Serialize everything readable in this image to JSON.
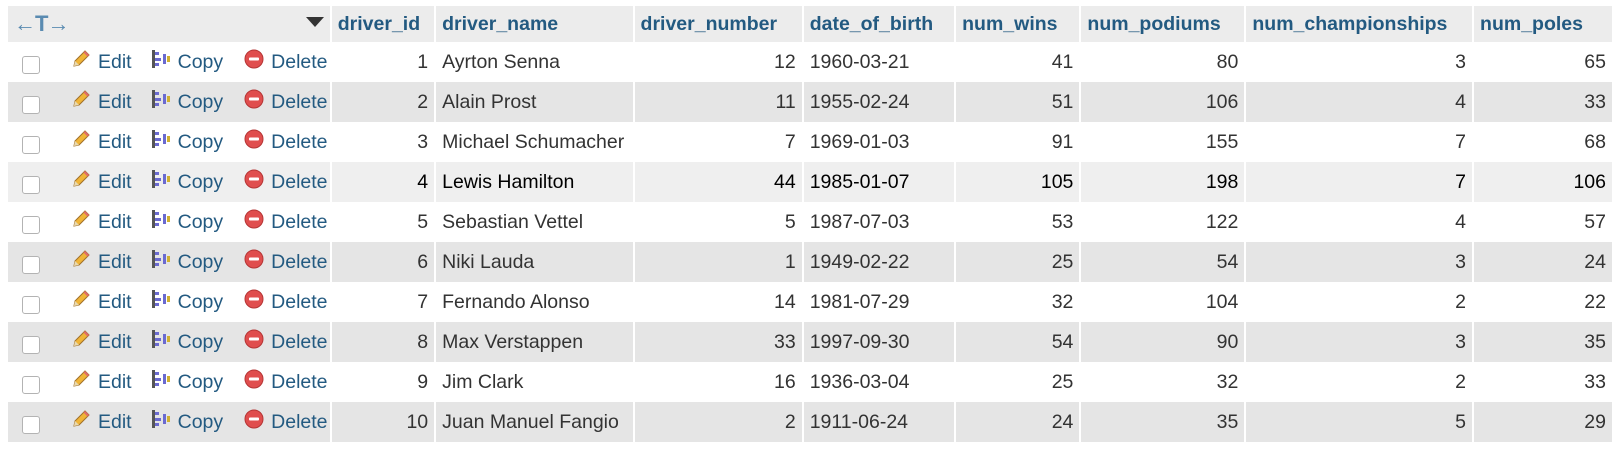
{
  "toolbar": {
    "arrows": "←T→"
  },
  "columns": [
    "driver_id",
    "driver_name",
    "driver_number",
    "date_of_birth",
    "num_wins",
    "num_podiums",
    "num_championships",
    "num_poles"
  ],
  "actions": {
    "edit": "Edit",
    "copy": "Copy",
    "delete": "Delete"
  },
  "rows": [
    {
      "driver_id": "1",
      "driver_name": "Ayrton Senna",
      "driver_number": "12",
      "date_of_birth": "1960-03-21",
      "num_wins": "41",
      "num_podiums": "80",
      "num_championships": "3",
      "num_poles": "65"
    },
    {
      "driver_id": "2",
      "driver_name": "Alain Prost",
      "driver_number": "11",
      "date_of_birth": "1955-02-24",
      "num_wins": "51",
      "num_podiums": "106",
      "num_championships": "4",
      "num_poles": "33"
    },
    {
      "driver_id": "3",
      "driver_name": "Michael Schumacher",
      "driver_number": "7",
      "date_of_birth": "1969-01-03",
      "num_wins": "91",
      "num_podiums": "155",
      "num_championships": "7",
      "num_poles": "68"
    },
    {
      "driver_id": "4",
      "driver_name": "Lewis Hamilton",
      "driver_number": "44",
      "date_of_birth": "1985-01-07",
      "num_wins": "105",
      "num_podiums": "198",
      "num_championships": "7",
      "num_poles": "106"
    },
    {
      "driver_id": "5",
      "driver_name": "Sebastian Vettel",
      "driver_number": "5",
      "date_of_birth": "1987-07-03",
      "num_wins": "53",
      "num_podiums": "122",
      "num_championships": "4",
      "num_poles": "57"
    },
    {
      "driver_id": "6",
      "driver_name": "Niki Lauda",
      "driver_number": "1",
      "date_of_birth": "1949-02-22",
      "num_wins": "25",
      "num_podiums": "54",
      "num_championships": "3",
      "num_poles": "24"
    },
    {
      "driver_id": "7",
      "driver_name": "Fernando Alonso",
      "driver_number": "14",
      "date_of_birth": "1981-07-29",
      "num_wins": "32",
      "num_podiums": "104",
      "num_championships": "2",
      "num_poles": "22"
    },
    {
      "driver_id": "8",
      "driver_name": "Max Verstappen",
      "driver_number": "33",
      "date_of_birth": "1997-09-30",
      "num_wins": "54",
      "num_podiums": "90",
      "num_championships": "3",
      "num_poles": "35"
    },
    {
      "driver_id": "9",
      "driver_name": "Jim Clark",
      "driver_number": "16",
      "date_of_birth": "1936-03-04",
      "num_wins": "25",
      "num_podiums": "32",
      "num_championships": "2",
      "num_poles": "33"
    },
    {
      "driver_id": "10",
      "driver_name": "Juan Manuel Fangio",
      "driver_number": "2",
      "date_of_birth": "1911-06-24",
      "num_wins": "24",
      "num_podiums": "35",
      "num_championships": "5",
      "num_poles": "29"
    }
  ]
}
